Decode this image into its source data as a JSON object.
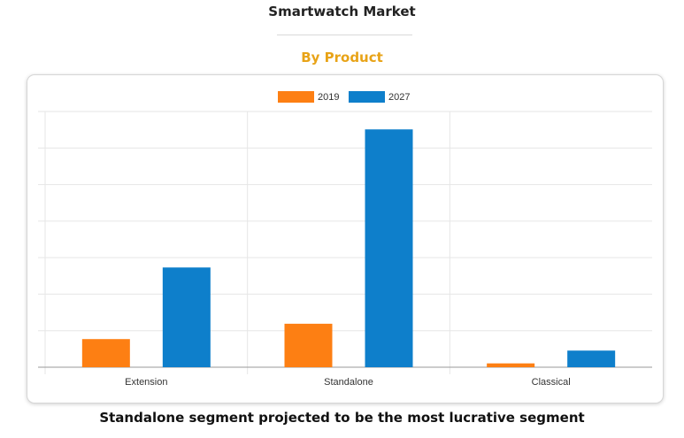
{
  "page": {
    "title": "Smartwatch Market",
    "subtitle": "By Product",
    "caption": "Standalone segment projected to be the most lucrative segment"
  },
  "colors": {
    "subtitle": "#e8a317",
    "series_2019": "#fd7f13",
    "series_2027": "#0e7fcb",
    "grid": "#e6e6e6",
    "axis": "#999999",
    "text": "#333333"
  },
  "chart_data": {
    "type": "bar",
    "title": "",
    "xlabel": "",
    "ylabel": "",
    "categories": [
      "Extension",
      "Standalone",
      "Classical"
    ],
    "series": [
      {
        "name": "2019",
        "values": [
          11,
          17,
          1.5
        ]
      },
      {
        "name": "2027",
        "values": [
          39,
          93,
          6.5
        ]
      }
    ],
    "ylim": [
      0,
      100
    ],
    "grid": true,
    "legend": "top-center"
  }
}
